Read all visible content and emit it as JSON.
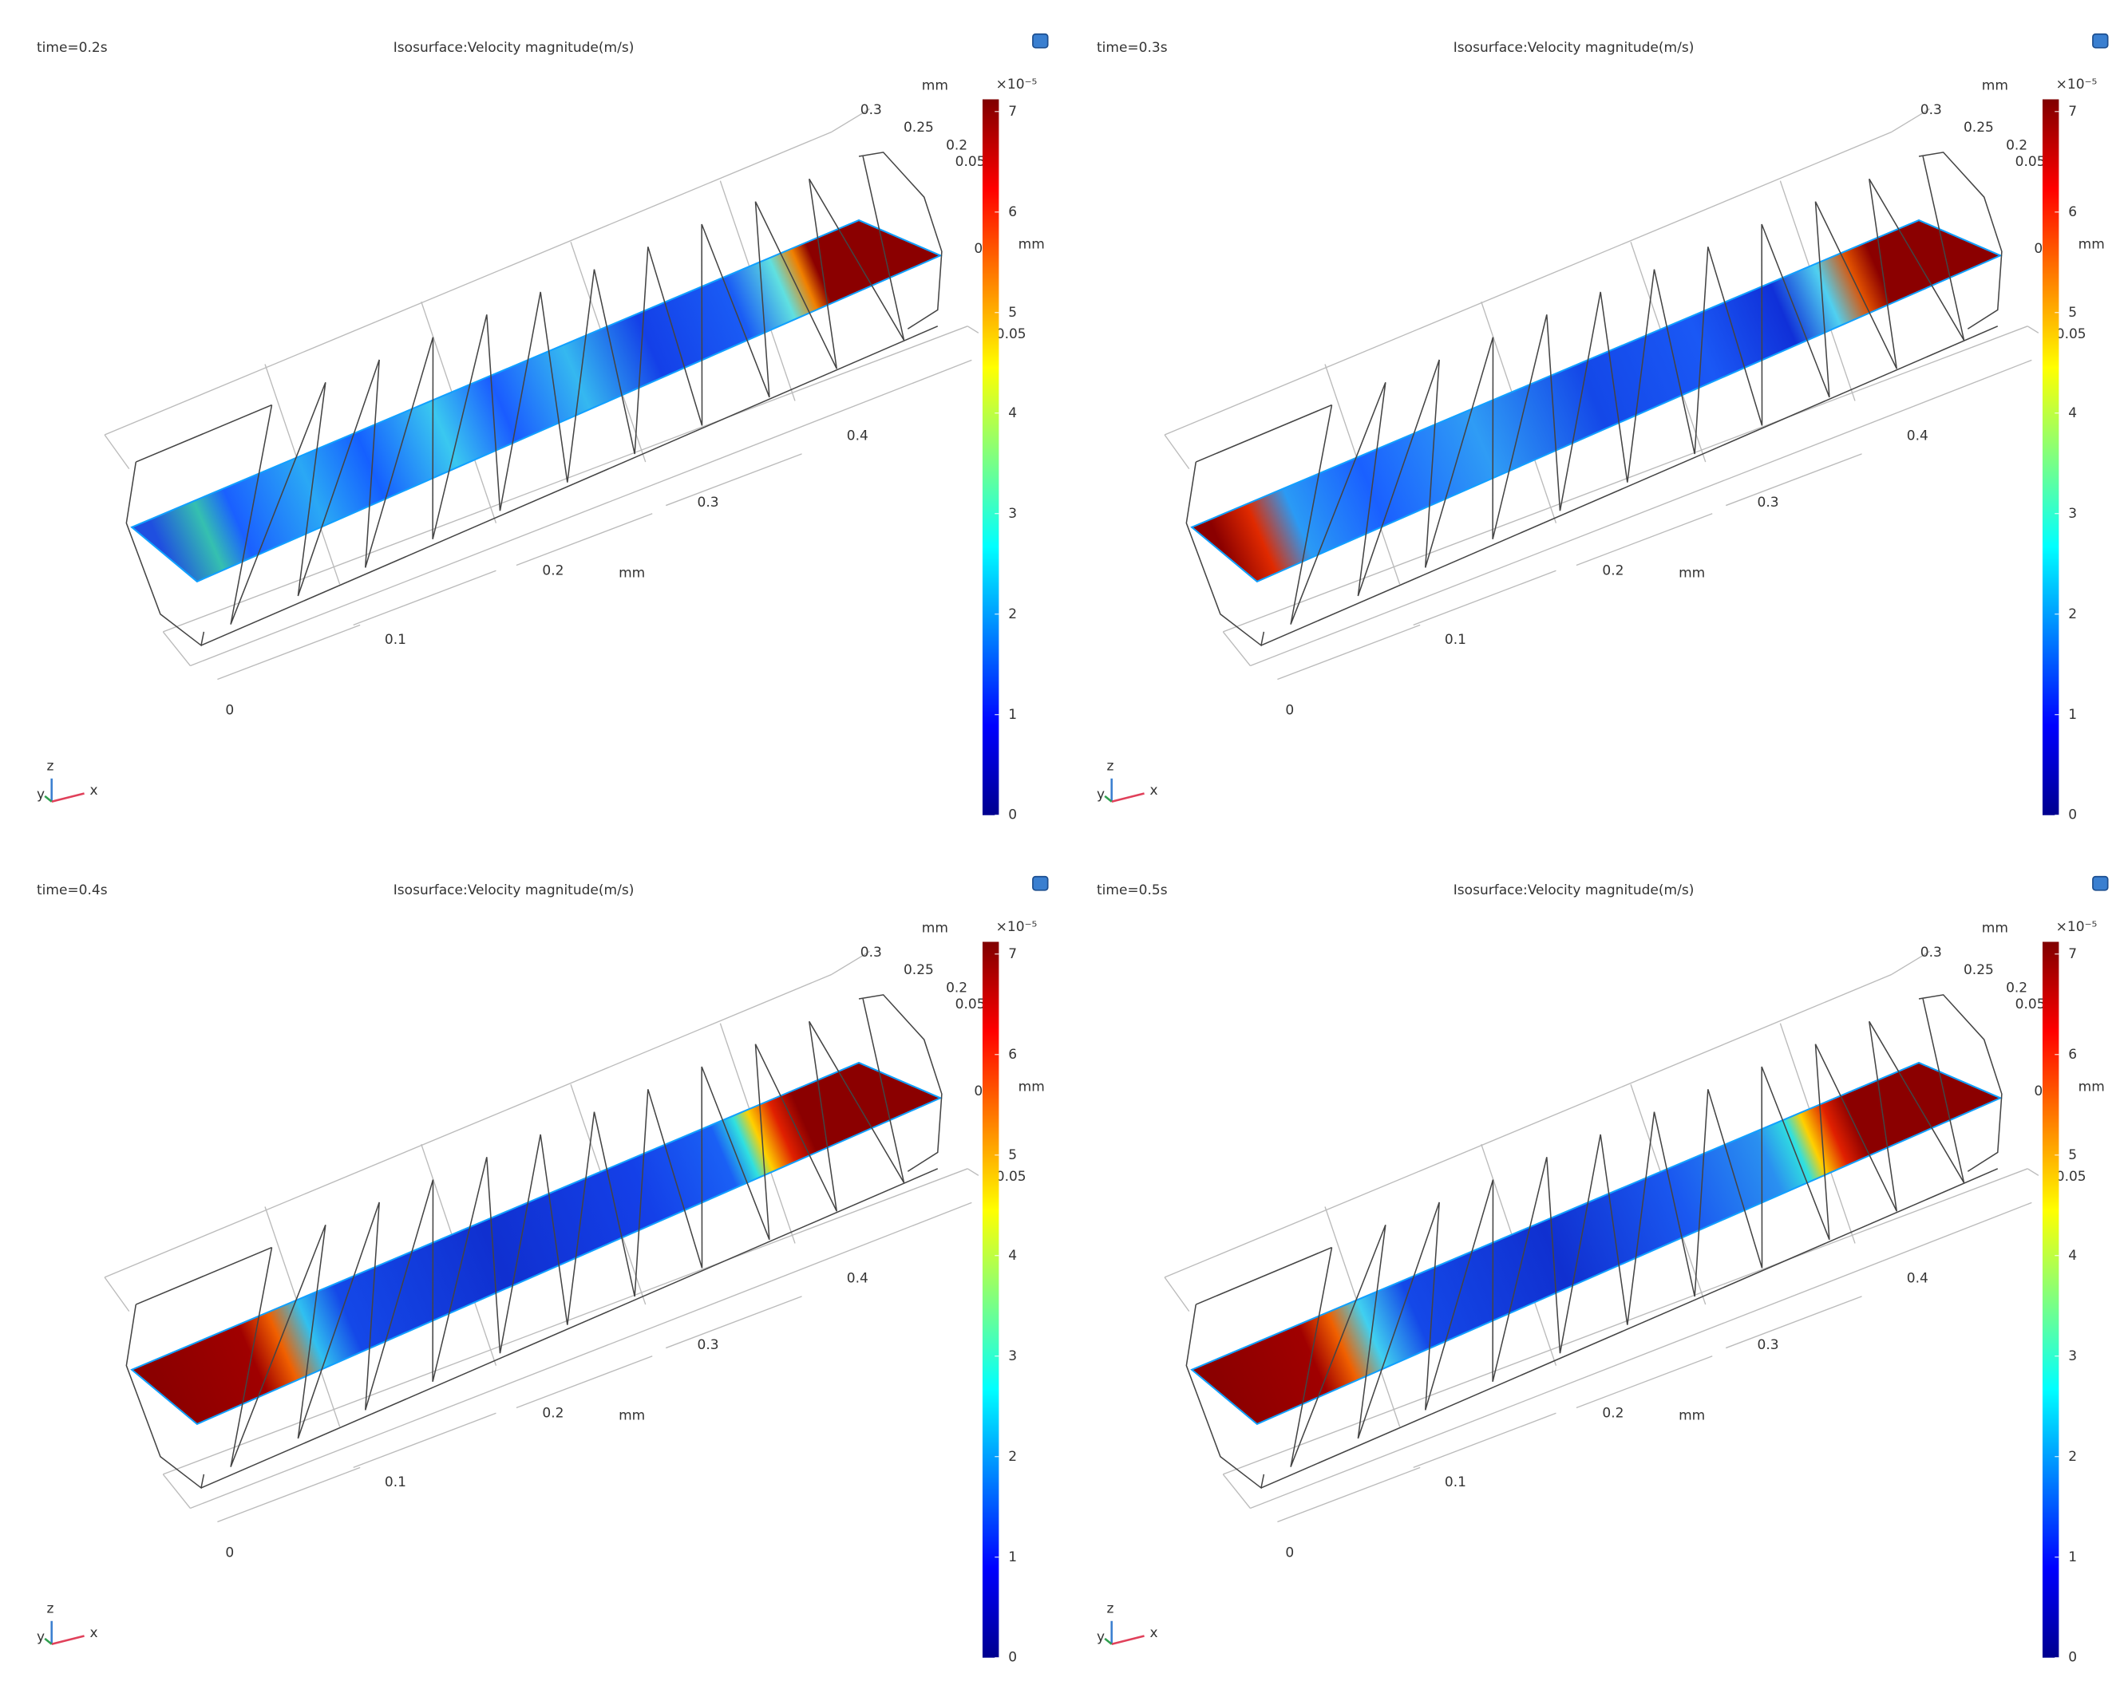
{
  "panels": [
    {
      "time": "time=0.2s",
      "title": "Isosurface:Velocity magnitude(m/s)",
      "colorbar": {
        "multiplier": "×10⁻⁵",
        "ticks": [
          0,
          1,
          2,
          3,
          4,
          5,
          6,
          7
        ]
      },
      "axes": {
        "x_labels": [
          "0",
          "0.1",
          "0.2",
          "0.3",
          "0.4"
        ],
        "x_unit": "mm",
        "y_labels": [
          "0.3",
          "0.25",
          "0.2",
          "0.05"
        ],
        "y_unit": "mm",
        "z_labels": [
          "0",
          "0.05"
        ],
        "z_unit": "mm"
      },
      "triad": {
        "x": "x",
        "y": "y",
        "z": "z"
      }
    },
    {
      "time": "time=0.3s",
      "title": "Isosurface:Velocity magnitude(m/s)",
      "colorbar": {
        "multiplier": "×10⁻⁵",
        "ticks": [
          0,
          1,
          2,
          3,
          4,
          5,
          6,
          7
        ]
      },
      "axes": {
        "x_labels": [
          "0",
          "0.1",
          "0.2",
          "0.3",
          "0.4"
        ],
        "x_unit": "mm",
        "y_labels": [
          "0.3",
          "0.25",
          "0.2",
          "0.05"
        ],
        "y_unit": "mm",
        "z_labels": [
          "0",
          "0.05"
        ],
        "z_unit": "mm"
      },
      "triad": {
        "x": "x",
        "y": "y",
        "z": "z"
      }
    },
    {
      "time": "time=0.4s",
      "title": "Isosurface:Velocity magnitude(m/s)",
      "colorbar": {
        "multiplier": "×10⁻⁵",
        "ticks": [
          0,
          1,
          2,
          3,
          4,
          5,
          6,
          7
        ]
      },
      "axes": {
        "x_labels": [
          "0",
          "0.1",
          "0.2",
          "0.3",
          "0.4"
        ],
        "x_unit": "mm",
        "y_labels": [
          "0.3",
          "0.25",
          "0.2",
          "0.05"
        ],
        "y_unit": "mm",
        "z_labels": [
          "0",
          "0.05"
        ],
        "z_unit": "mm"
      },
      "triad": {
        "x": "x",
        "y": "y",
        "z": "z"
      }
    },
    {
      "time": "time=0.5s",
      "title": "Isosurface:Velocity magnitude(m/s)",
      "colorbar": {
        "multiplier": "×10⁻⁵",
        "ticks": [
          0,
          1,
          2,
          3,
          4,
          5,
          6,
          7
        ]
      },
      "axes": {
        "x_labels": [
          "0",
          "0.1",
          "0.2",
          "0.3",
          "0.4"
        ],
        "x_unit": "mm",
        "y_labels": [
          "0.3",
          "0.25",
          "0.2",
          "0.05"
        ],
        "y_unit": "mm",
        "z_labels": [
          "0",
          "0.05"
        ],
        "z_unit": "mm"
      },
      "triad": {
        "x": "x",
        "y": "y",
        "z": "z"
      }
    }
  ]
}
